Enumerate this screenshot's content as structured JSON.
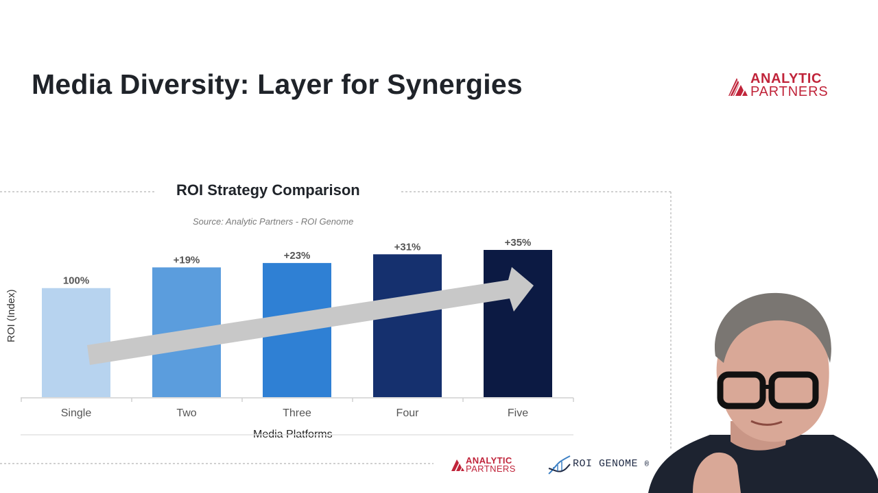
{
  "slide": {
    "title": "Media Diversity: Layer for Synergies"
  },
  "logo_top": {
    "line1": "ANALYTIC",
    "line2": "PARTNERS"
  },
  "logo_bottom": {
    "analytic_line1": "ANALYTIC",
    "analytic_line2": "PARTNERS",
    "genome": "ROI GENOME",
    "registered": "®"
  },
  "colors": {
    "brand_red": "#c0243a",
    "arrow": "#c8c8c8",
    "bars": [
      "#b7d3ef",
      "#5b9ddd",
      "#2f80d4",
      "#15306e",
      "#0c1a43"
    ]
  },
  "chart_data": {
    "type": "bar",
    "title": "ROI Strategy Comparison",
    "subtitle": "Source: Analytic Partners -  ROI Genome",
    "xlabel": "Media Platforms",
    "ylabel": "ROI (Index)",
    "categories": [
      "Single",
      "Two",
      "Three",
      "Four",
      "Five"
    ],
    "values": [
      100,
      119,
      123,
      131,
      135
    ],
    "data_labels": [
      "100%",
      "+19%",
      "+23%",
      "+31%",
      "+35%"
    ],
    "ylim": [
      0,
      135
    ],
    "grid": false,
    "legend": "none",
    "annotation": "upward trend arrow across bars"
  }
}
